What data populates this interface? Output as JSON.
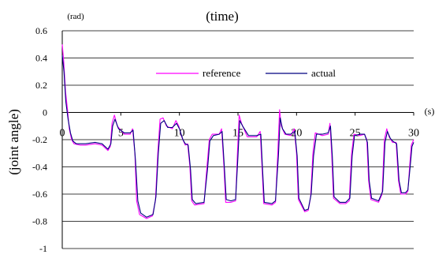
{
  "chart_data": {
    "type": "line",
    "title": "(time)",
    "ylabel": "(joint angle)",
    "y_unit": "(rad)",
    "x_unit": "(s)",
    "xlim": [
      0,
      30
    ],
    "ylim": [
      -1,
      0.6
    ],
    "x_ticks": [
      "0",
      "5",
      "10",
      "15",
      "20",
      "25",
      "30"
    ],
    "y_ticks": [
      "0.6",
      "0.4",
      "0.2",
      "0",
      "-0.2",
      "-0.4",
      "-0.6",
      "-0.8",
      "-1"
    ],
    "grid": true,
    "legend_position": "top-right",
    "series": [
      {
        "name": "reference",
        "color": "#ff00ff",
        "points": [
          [
            0,
            0.5
          ],
          [
            0.12,
            0.38
          ],
          [
            0.28,
            0.15
          ],
          [
            0.45,
            0.02
          ],
          [
            0.6,
            -0.12
          ],
          [
            0.8,
            -0.2
          ],
          [
            1.0,
            -0.23
          ],
          [
            1.5,
            -0.24
          ],
          [
            2.0,
            -0.24
          ],
          [
            2.8,
            -0.23
          ],
          [
            3.4,
            -0.24
          ],
          [
            3.9,
            -0.28
          ],
          [
            4.1,
            -0.25
          ],
          [
            4.25,
            -0.08
          ],
          [
            4.45,
            -0.02
          ],
          [
            4.7,
            -0.1
          ],
          [
            5.3,
            -0.16
          ],
          [
            5.8,
            -0.16
          ],
          [
            6.0,
            -0.12
          ],
          [
            6.2,
            -0.3
          ],
          [
            6.35,
            -0.65
          ],
          [
            6.6,
            -0.75
          ],
          [
            7.2,
            -0.78
          ],
          [
            7.7,
            -0.76
          ],
          [
            7.95,
            -0.65
          ],
          [
            8.15,
            -0.3
          ],
          [
            8.35,
            -0.05
          ],
          [
            8.6,
            -0.04
          ],
          [
            8.9,
            -0.1
          ],
          [
            9.4,
            -0.12
          ],
          [
            9.7,
            -0.06
          ],
          [
            9.95,
            -0.1
          ],
          [
            10.2,
            -0.18
          ],
          [
            10.5,
            -0.24
          ],
          [
            10.7,
            -0.23
          ],
          [
            10.9,
            -0.4
          ],
          [
            11.05,
            -0.65
          ],
          [
            11.3,
            -0.68
          ],
          [
            12.1,
            -0.67
          ],
          [
            12.35,
            -0.4
          ],
          [
            12.55,
            -0.2
          ],
          [
            12.8,
            -0.16
          ],
          [
            13.4,
            -0.16
          ],
          [
            13.6,
            -0.12
          ],
          [
            13.8,
            -0.4
          ],
          [
            13.95,
            -0.66
          ],
          [
            14.4,
            -0.66
          ],
          [
            14.8,
            -0.65
          ],
          [
            14.95,
            -0.3
          ],
          [
            15.1,
            -0.02
          ],
          [
            15.3,
            -0.08
          ],
          [
            15.8,
            -0.18
          ],
          [
            16.6,
            -0.18
          ],
          [
            16.9,
            -0.14
          ],
          [
            17.05,
            -0.4
          ],
          [
            17.2,
            -0.67
          ],
          [
            17.9,
            -0.68
          ],
          [
            18.2,
            -0.66
          ],
          [
            18.4,
            -0.3
          ],
          [
            18.55,
            0.02
          ],
          [
            18.7,
            -0.1
          ],
          [
            19.0,
            -0.16
          ],
          [
            19.5,
            -0.17
          ],
          [
            19.8,
            -0.12
          ],
          [
            20.0,
            -0.3
          ],
          [
            20.15,
            -0.64
          ],
          [
            20.7,
            -0.73
          ],
          [
            21.0,
            -0.72
          ],
          [
            21.2,
            -0.62
          ],
          [
            21.4,
            -0.3
          ],
          [
            21.6,
            -0.15
          ],
          [
            22.2,
            -0.17
          ],
          [
            22.7,
            -0.16
          ],
          [
            22.85,
            -0.08
          ],
          [
            23.0,
            -0.3
          ],
          [
            23.15,
            -0.63
          ],
          [
            23.7,
            -0.67
          ],
          [
            24.2,
            -0.67
          ],
          [
            24.5,
            -0.65
          ],
          [
            24.7,
            -0.3
          ],
          [
            24.9,
            -0.16
          ],
          [
            25.4,
            -0.17
          ],
          [
            25.8,
            -0.16
          ],
          [
            26.0,
            -0.2
          ],
          [
            26.15,
            -0.5
          ],
          [
            26.35,
            -0.64
          ],
          [
            27.0,
            -0.66
          ],
          [
            27.3,
            -0.6
          ],
          [
            27.5,
            -0.2
          ],
          [
            27.7,
            -0.12
          ],
          [
            27.9,
            -0.18
          ],
          [
            28.2,
            -0.22
          ],
          [
            28.5,
            -0.22
          ],
          [
            28.7,
            -0.5
          ],
          [
            28.9,
            -0.6
          ],
          [
            29.3,
            -0.6
          ],
          [
            29.5,
            -0.58
          ],
          [
            29.65,
            -0.4
          ],
          [
            29.8,
            -0.24
          ],
          [
            30.0,
            -0.2
          ]
        ]
      },
      {
        "name": "actual",
        "color": "#000080",
        "points": [
          [
            0,
            0.42
          ],
          [
            0.15,
            0.3
          ],
          [
            0.3,
            0.08
          ],
          [
            0.5,
            -0.05
          ],
          [
            0.7,
            -0.15
          ],
          [
            0.9,
            -0.21
          ],
          [
            1.2,
            -0.23
          ],
          [
            2.0,
            -0.23
          ],
          [
            2.8,
            -0.22
          ],
          [
            3.4,
            -0.23
          ],
          [
            3.9,
            -0.27
          ],
          [
            4.15,
            -0.23
          ],
          [
            4.3,
            -0.1
          ],
          [
            4.5,
            -0.05
          ],
          [
            4.8,
            -0.12
          ],
          [
            5.3,
            -0.15
          ],
          [
            5.8,
            -0.15
          ],
          [
            6.05,
            -0.13
          ],
          [
            6.25,
            -0.35
          ],
          [
            6.45,
            -0.65
          ],
          [
            6.7,
            -0.74
          ],
          [
            7.2,
            -0.77
          ],
          [
            7.75,
            -0.75
          ],
          [
            8.0,
            -0.62
          ],
          [
            8.2,
            -0.3
          ],
          [
            8.4,
            -0.08
          ],
          [
            8.7,
            -0.06
          ],
          [
            9.0,
            -0.11
          ],
          [
            9.4,
            -0.11
          ],
          [
            9.75,
            -0.08
          ],
          [
            10.0,
            -0.12
          ],
          [
            10.3,
            -0.2
          ],
          [
            10.5,
            -0.23
          ],
          [
            10.75,
            -0.24
          ],
          [
            10.95,
            -0.42
          ],
          [
            11.1,
            -0.64
          ],
          [
            11.4,
            -0.67
          ],
          [
            12.1,
            -0.66
          ],
          [
            12.4,
            -0.42
          ],
          [
            12.6,
            -0.21
          ],
          [
            12.9,
            -0.17
          ],
          [
            13.4,
            -0.16
          ],
          [
            13.65,
            -0.14
          ],
          [
            13.85,
            -0.42
          ],
          [
            14.0,
            -0.64
          ],
          [
            14.4,
            -0.65
          ],
          [
            14.8,
            -0.64
          ],
          [
            15.0,
            -0.32
          ],
          [
            15.15,
            -0.06
          ],
          [
            15.4,
            -0.1
          ],
          [
            15.9,
            -0.17
          ],
          [
            16.6,
            -0.17
          ],
          [
            16.95,
            -0.16
          ],
          [
            17.1,
            -0.42
          ],
          [
            17.25,
            -0.66
          ],
          [
            17.9,
            -0.67
          ],
          [
            18.2,
            -0.65
          ],
          [
            18.45,
            -0.32
          ],
          [
            18.6,
            -0.04
          ],
          [
            18.8,
            -0.12
          ],
          [
            19.1,
            -0.16
          ],
          [
            19.5,
            -0.16
          ],
          [
            19.85,
            -0.14
          ],
          [
            20.05,
            -0.32
          ],
          [
            20.2,
            -0.63
          ],
          [
            20.7,
            -0.72
          ],
          [
            21.0,
            -0.71
          ],
          [
            21.25,
            -0.6
          ],
          [
            21.45,
            -0.32
          ],
          [
            21.7,
            -0.16
          ],
          [
            22.2,
            -0.16
          ],
          [
            22.7,
            -0.15
          ],
          [
            22.9,
            -0.1
          ],
          [
            23.05,
            -0.32
          ],
          [
            23.2,
            -0.62
          ],
          [
            23.7,
            -0.66
          ],
          [
            24.2,
            -0.66
          ],
          [
            24.55,
            -0.63
          ],
          [
            24.75,
            -0.32
          ],
          [
            24.95,
            -0.17
          ],
          [
            25.4,
            -0.16
          ],
          [
            25.8,
            -0.16
          ],
          [
            26.05,
            -0.22
          ],
          [
            26.2,
            -0.5
          ],
          [
            26.4,
            -0.63
          ],
          [
            27.0,
            -0.65
          ],
          [
            27.35,
            -0.58
          ],
          [
            27.55,
            -0.22
          ],
          [
            27.75,
            -0.14
          ],
          [
            28.0,
            -0.19
          ],
          [
            28.2,
            -0.21
          ],
          [
            28.55,
            -0.23
          ],
          [
            28.75,
            -0.5
          ],
          [
            28.95,
            -0.59
          ],
          [
            29.3,
            -0.59
          ],
          [
            29.5,
            -0.57
          ],
          [
            29.7,
            -0.4
          ],
          [
            29.85,
            -0.25
          ],
          [
            30.0,
            -0.22
          ]
        ]
      }
    ]
  }
}
